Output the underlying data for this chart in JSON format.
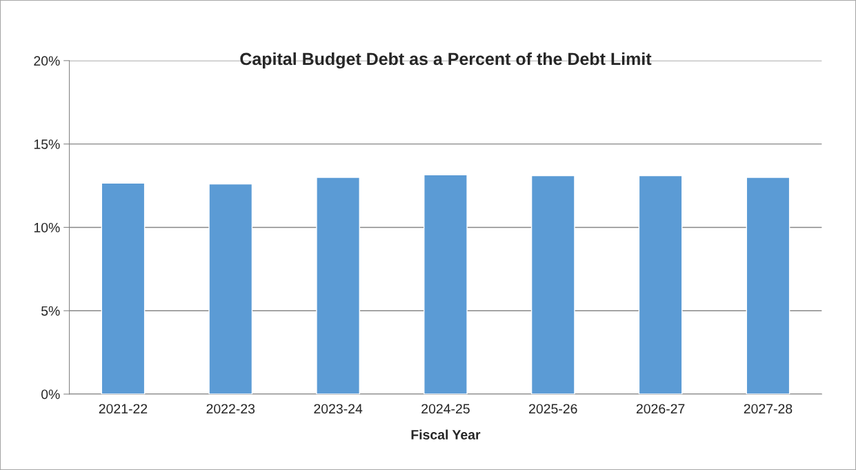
{
  "chart_data": {
    "type": "bar",
    "title": "Capital Budget Debt as a Percent of the Debt Limit",
    "xlabel": "Fiscal Year",
    "categories": [
      "2021-22",
      "2022-23",
      "2023-24",
      "2024-25",
      "2025-26",
      "2026-27",
      "2027-28"
    ],
    "values": [
      12.65,
      12.6,
      13.0,
      13.15,
      13.1,
      13.1,
      13.0
    ],
    "color": "#5b9bd5",
    "ylim": [
      0,
      20
    ],
    "yticks": [
      {
        "value": 0,
        "label": "0%"
      },
      {
        "value": 5,
        "label": "5%"
      },
      {
        "value": 10,
        "label": "10%"
      },
      {
        "value": 15,
        "label": "15%"
      },
      {
        "value": 20,
        "label": "20%"
      }
    ],
    "grid": "y",
    "legend": false
  }
}
